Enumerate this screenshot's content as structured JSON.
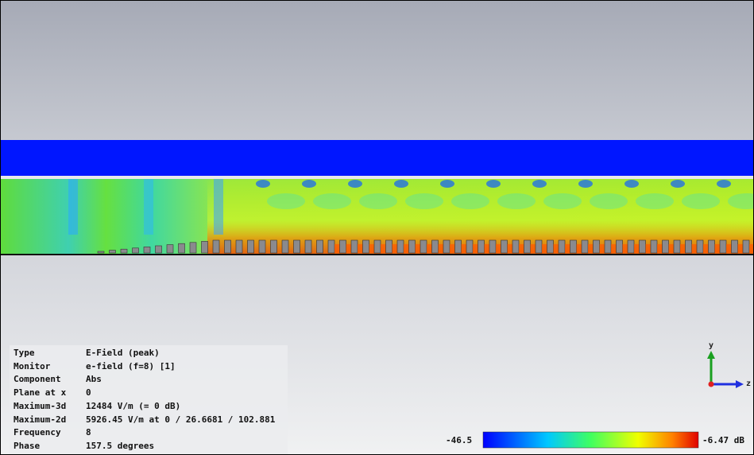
{
  "info": {
    "rows": [
      {
        "label": "Type",
        "value": "E-Field (peak)"
      },
      {
        "label": "Monitor",
        "value": "e-field (f=8) [1]"
      },
      {
        "label": "Component",
        "value": "Abs"
      },
      {
        "label": "Plane at x",
        "value": "0"
      },
      {
        "label": "Maximum-3d",
        "value": "12484 V/m (= 0 dB)"
      },
      {
        "label": "Maximum-2d",
        "value": "5926.45 V/m at 0 / 26.6681 / 102.881"
      },
      {
        "label": "Frequency",
        "value": "8"
      },
      {
        "label": "Phase",
        "value": "157.5 degrees"
      }
    ]
  },
  "colorbar": {
    "min": "-46.5",
    "max": "-6.47 dB"
  },
  "axes": {
    "y": "y",
    "z": "z"
  }
}
